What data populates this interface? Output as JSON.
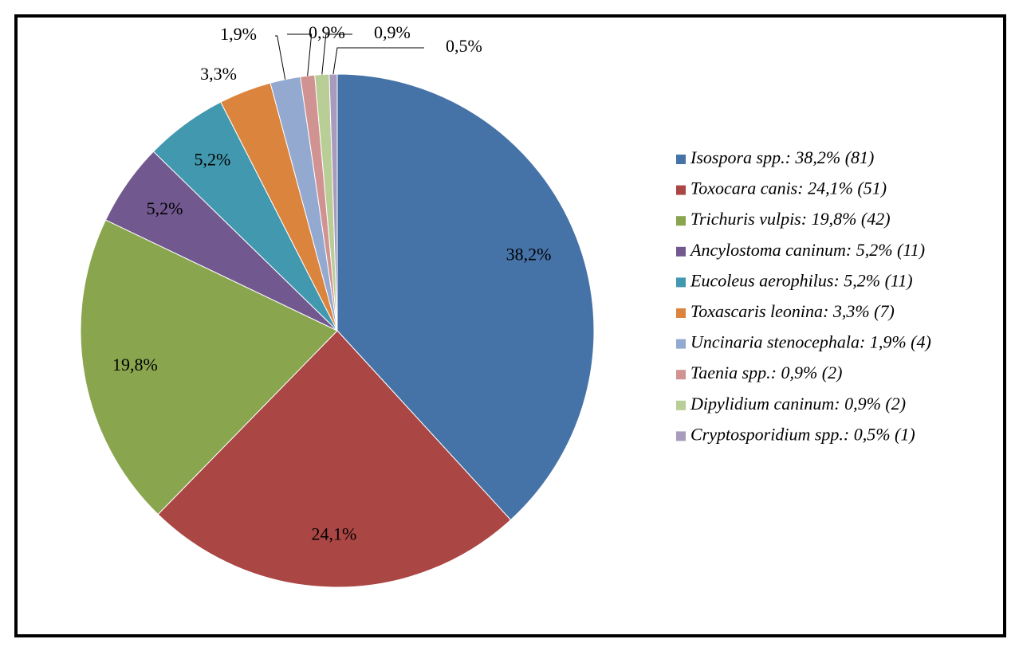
{
  "chart_data": {
    "type": "pie",
    "categories": [
      "Isospora spp.: 38,2% (81)",
      "Toxocara canis: 24,1% (51)",
      "Trichuris vulpis: 19,8% (42)",
      "Ancylostoma caninum: 5,2% (11)",
      "Eucoleus aerophilus: 5,2% (11)",
      "Toxascaris leonina: 3,3% (7)",
      "Uncinaria stenocephala: 1,9% (4)",
      "Taenia spp.: 0,9% (2)",
      "Dipylidium caninum: 0,9% (2)",
      "Cryptosporidium spp.: 0,5% (1)"
    ],
    "values": [
      38.2,
      24.1,
      19.8,
      5.2,
      5.2,
      3.3,
      1.9,
      0.9,
      0.9,
      0.5
    ],
    "value_labels": [
      "38,2%",
      "24,1%",
      "19,8%",
      "5,2%",
      "5,2%",
      "3,3%",
      "1,9%",
      "0,9%",
      "0,9%",
      "0,5%"
    ],
    "colors": [
      "#4572a7",
      "#aa4643",
      "#89a54e",
      "#71588f",
      "#4198af",
      "#db843d",
      "#93a9cf",
      "#d19392",
      "#b9cd96",
      "#a99bbd"
    ],
    "legend": "right"
  }
}
